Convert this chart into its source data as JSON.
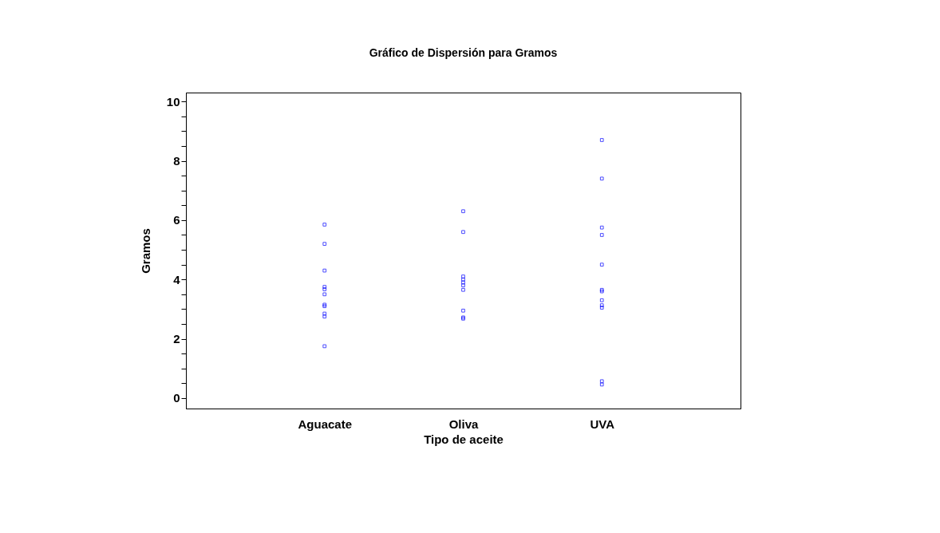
{
  "chart_data": {
    "type": "scatter",
    "title": "Gráfico de Dispersión para Gramos",
    "xlabel": "Tipo de aceite",
    "ylabel": "Gramos",
    "categories": [
      "Aguacate",
      "Oliva",
      "UVA"
    ],
    "series": [
      {
        "color": "#0000ff",
        "x": [
          "Aguacate",
          "Aguacate",
          "Aguacate",
          "Aguacate",
          "Aguacate",
          "Aguacate",
          "Aguacate",
          "Aguacate",
          "Aguacate",
          "Aguacate",
          "Aguacate"
        ],
        "values": [
          5.85,
          5.2,
          4.3,
          3.75,
          3.67,
          3.5,
          3.15,
          3.1,
          2.85,
          2.75,
          1.75
        ]
      },
      {
        "color": "#0000ff",
        "x": [
          "Oliva",
          "Oliva",
          "Oliva",
          "Oliva",
          "Oliva",
          "Oliva",
          "Oliva",
          "Oliva",
          "Oliva",
          "Oliva"
        ],
        "values": [
          6.3,
          5.6,
          4.1,
          4.0,
          3.9,
          3.8,
          3.65,
          2.95,
          2.72,
          2.68
        ]
      },
      {
        "color": "#0000ff",
        "x": [
          "UVA",
          "UVA",
          "UVA",
          "UVA",
          "UVA",
          "UVA",
          "UVA",
          "UVA",
          "UVA",
          "UVA",
          "UVA",
          "UVA"
        ],
        "values": [
          8.7,
          7.4,
          5.75,
          5.5,
          4.5,
          3.65,
          3.6,
          3.3,
          3.13,
          3.05,
          0.57,
          0.46
        ]
      }
    ],
    "ylim": [
      -0.35,
      10.3
    ],
    "yticks": [
      0,
      {
        "value": 0.5,
        "label": null
      },
      {
        "value": 1,
        "label": null
      },
      {
        "value": 1.5,
        "label": null
      },
      2,
      {
        "value": 2.5,
        "label": null
      },
      {
        "value": 3,
        "label": null
      },
      {
        "value": 3.5,
        "label": null
      },
      4,
      {
        "value": 4.5,
        "label": null
      },
      {
        "value": 5,
        "label": null
      },
      {
        "value": 5.5,
        "label": null
      },
      6,
      {
        "value": 6.5,
        "label": null
      },
      {
        "value": 7,
        "label": null
      },
      {
        "value": 7.5,
        "label": null
      },
      8,
      {
        "value": 8.5,
        "label": null
      },
      {
        "value": 9,
        "label": null
      },
      {
        "value": 9.5,
        "label": null
      },
      10
    ],
    "marker": "square",
    "grid": false,
    "legend": false
  }
}
